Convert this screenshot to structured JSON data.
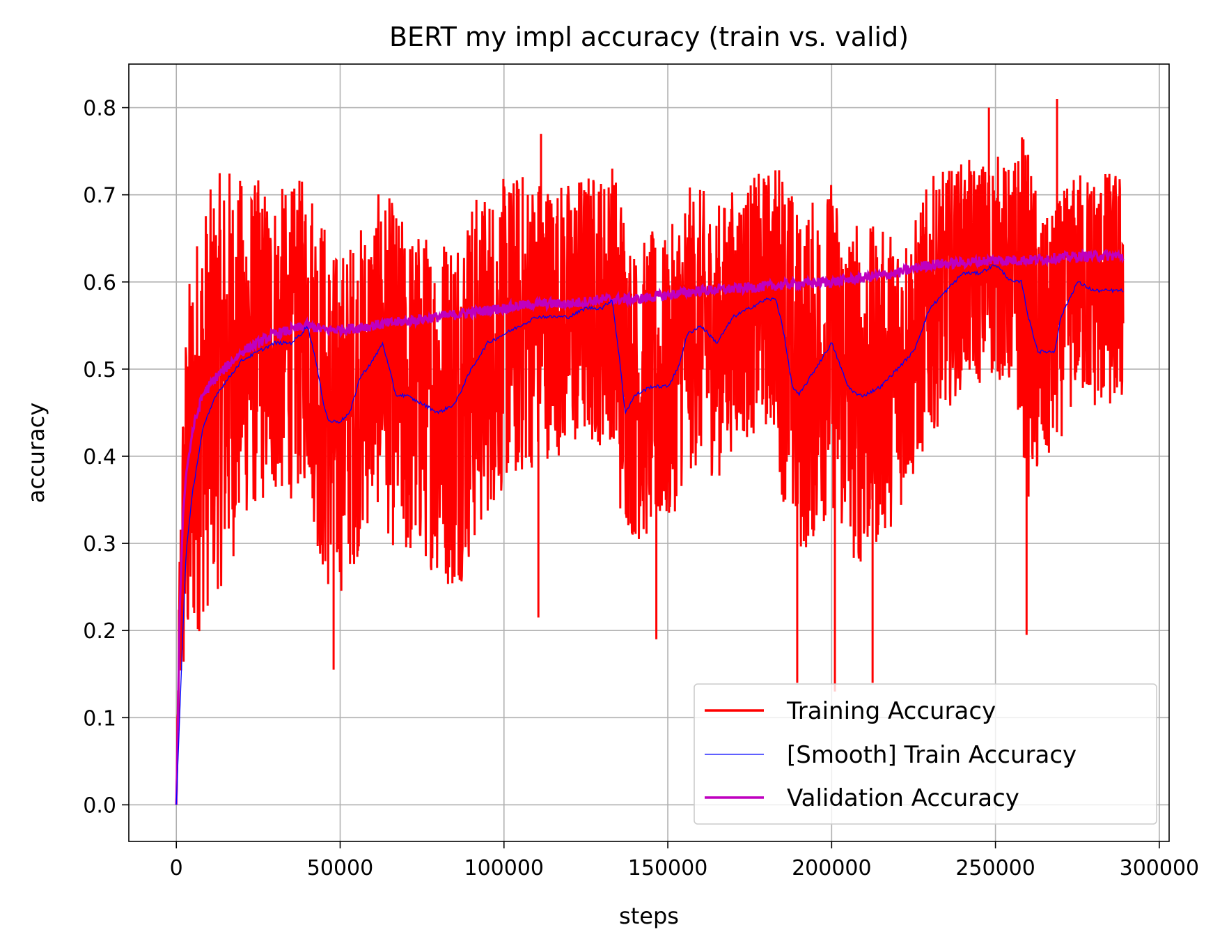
{
  "chart_data": {
    "type": "line",
    "title": "BERT my impl accuracy (train vs. valid)",
    "xlabel": "steps",
    "ylabel": "accuracy",
    "xlim": [
      -14500,
      303000
    ],
    "ylim": [
      -0.042,
      0.85
    ],
    "xticks": [
      0,
      50000,
      100000,
      150000,
      200000,
      250000,
      300000
    ],
    "xtick_labels": [
      "0",
      "50000",
      "100000",
      "150000",
      "200000",
      "250000",
      "300000"
    ],
    "yticks": [
      0.0,
      0.1,
      0.2,
      0.3,
      0.4,
      0.5,
      0.6,
      0.7,
      0.8
    ],
    "ytick_labels": [
      "0.0",
      "0.1",
      "0.2",
      "0.3",
      "0.4",
      "0.5",
      "0.6",
      "0.7",
      "0.8"
    ],
    "grid": true,
    "legend_position": "lower-right",
    "series": [
      {
        "name": "Training Accuracy",
        "color": "#ff0000",
        "style": "noisy",
        "x": [
          0,
          500,
          1000,
          2000,
          3000,
          5000,
          8000,
          12000,
          16000,
          20000,
          25000,
          30000,
          35000,
          38000,
          40000,
          42000,
          45000,
          48000,
          50000,
          55000,
          60000,
          63000,
          65000,
          70000,
          75000,
          80000,
          85000,
          90000,
          95000,
          100000,
          105000,
          110000,
          115000,
          120000,
          125000,
          130000,
          133000,
          135000,
          140000,
          145000,
          150000,
          155000,
          160000,
          165000,
          170000,
          175000,
          180000,
          183000,
          185000,
          190000,
          195000,
          200000,
          205000,
          210000,
          215000,
          220000,
          225000,
          230000,
          235000,
          240000,
          245000,
          250000,
          255000,
          258000,
          260000,
          265000,
          270000,
          275000,
          280000,
          285000,
          289000
        ],
        "values": [
          0.0,
          0.1,
          0.2,
          0.3,
          0.35,
          0.41,
          0.45,
          0.48,
          0.5,
          0.52,
          0.53,
          0.53,
          0.53,
          0.54,
          0.55,
          0.52,
          0.46,
          0.44,
          0.44,
          0.47,
          0.51,
          0.53,
          0.5,
          0.47,
          0.47,
          0.46,
          0.46,
          0.49,
          0.52,
          0.54,
          0.55,
          0.56,
          0.56,
          0.56,
          0.57,
          0.57,
          0.58,
          0.53,
          0.47,
          0.48,
          0.48,
          0.54,
          0.55,
          0.53,
          0.56,
          0.57,
          0.58,
          0.58,
          0.55,
          0.48,
          0.5,
          0.53,
          0.48,
          0.47,
          0.48,
          0.5,
          0.52,
          0.57,
          0.59,
          0.61,
          0.61,
          0.62,
          0.6,
          0.6,
          0.55,
          0.52,
          0.56,
          0.6,
          0.59,
          0.59,
          0.59
        ],
        "spread": [
          0.0,
          0.05,
          0.12,
          0.18,
          0.22,
          0.24,
          0.24,
          0.24,
          0.24,
          0.2,
          0.19,
          0.18,
          0.18,
          0.18,
          0.18,
          0.2,
          0.22,
          0.2,
          0.2,
          0.19,
          0.18,
          0.18,
          0.2,
          0.2,
          0.19,
          0.2,
          0.22,
          0.21,
          0.19,
          0.18,
          0.18,
          0.17,
          0.16,
          0.16,
          0.16,
          0.16,
          0.16,
          0.2,
          0.17,
          0.18,
          0.17,
          0.17,
          0.16,
          0.16,
          0.15,
          0.15,
          0.15,
          0.16,
          0.2,
          0.2,
          0.2,
          0.19,
          0.2,
          0.2,
          0.18,
          0.17,
          0.15,
          0.15,
          0.14,
          0.13,
          0.13,
          0.13,
          0.13,
          0.18,
          0.2,
          0.15,
          0.14,
          0.13,
          0.14,
          0.14,
          0.14
        ],
        "spikes": [
          {
            "x": 48000,
            "y": 0.155
          },
          {
            "x": 110500,
            "y": 0.215
          },
          {
            "x": 146500,
            "y": 0.19
          },
          {
            "x": 189500,
            "y": 0.14
          },
          {
            "x": 201000,
            "y": 0.13
          },
          {
            "x": 212500,
            "y": 0.14
          },
          {
            "x": 259500,
            "y": 0.195
          },
          {
            "x": 268800,
            "y": 0.81
          },
          {
            "x": 248000,
            "y": 0.8
          },
          {
            "x": 111300,
            "y": 0.77
          }
        ]
      },
      {
        "name": "[Smooth] Train Accuracy",
        "color": "#0000ff",
        "style": "thin",
        "x": [
          0,
          1000,
          2000,
          3000,
          5000,
          8000,
          12000,
          16000,
          20000,
          25000,
          30000,
          35000,
          38000,
          40000,
          42000,
          45000,
          46500,
          50000,
          53000,
          56000,
          60000,
          63000,
          65000,
          67000,
          70000,
          75000,
          80000,
          85000,
          90000,
          95000,
          100000,
          105000,
          110000,
          115000,
          120000,
          125000,
          130000,
          133000,
          135000,
          137000,
          140000,
          145000,
          150000,
          153000,
          156000,
          160000,
          165000,
          170000,
          175000,
          180000,
          183000,
          185000,
          188000,
          190000,
          195000,
          200000,
          203000,
          205000,
          208000,
          210000,
          215000,
          220000,
          225000,
          230000,
          235000,
          240000,
          245000,
          250000,
          255000,
          258000,
          260000,
          263000,
          265000,
          268000,
          270000,
          275000,
          280000,
          285000,
          289000
        ],
        "values": [
          0.0,
          0.1,
          0.2,
          0.29,
          0.36,
          0.43,
          0.47,
          0.49,
          0.51,
          0.52,
          0.53,
          0.53,
          0.54,
          0.55,
          0.52,
          0.46,
          0.44,
          0.44,
          0.45,
          0.49,
          0.51,
          0.53,
          0.5,
          0.47,
          0.47,
          0.46,
          0.45,
          0.46,
          0.5,
          0.53,
          0.54,
          0.55,
          0.56,
          0.56,
          0.56,
          0.57,
          0.57,
          0.58,
          0.52,
          0.45,
          0.47,
          0.48,
          0.48,
          0.5,
          0.54,
          0.55,
          0.53,
          0.56,
          0.57,
          0.58,
          0.58,
          0.55,
          0.48,
          0.47,
          0.5,
          0.53,
          0.5,
          0.48,
          0.47,
          0.47,
          0.48,
          0.5,
          0.52,
          0.57,
          0.59,
          0.61,
          0.61,
          0.62,
          0.6,
          0.6,
          0.56,
          0.52,
          0.52,
          0.52,
          0.56,
          0.6,
          0.59,
          0.59,
          0.59
        ]
      },
      {
        "name": "Validation Accuracy",
        "color": "#bf00bf",
        "style": "jitter",
        "x": [
          0,
          500,
          1000,
          2000,
          3000,
          5000,
          8000,
          12000,
          16000,
          20000,
          25000,
          30000,
          35000,
          40000,
          45000,
          50000,
          60000,
          70000,
          80000,
          90000,
          100000,
          110000,
          120000,
          130000,
          140000,
          150000,
          160000,
          170000,
          180000,
          190000,
          200000,
          210000,
          220000,
          230000,
          240000,
          250000,
          260000,
          270000,
          280000,
          289000
        ],
        "values": [
          0.0,
          0.1,
          0.22,
          0.33,
          0.38,
          0.43,
          0.47,
          0.49,
          0.505,
          0.52,
          0.53,
          0.54,
          0.545,
          0.55,
          0.545,
          0.545,
          0.55,
          0.555,
          0.56,
          0.565,
          0.57,
          0.575,
          0.575,
          0.58,
          0.58,
          0.585,
          0.59,
          0.592,
          0.595,
          0.598,
          0.6,
          0.605,
          0.61,
          0.62,
          0.622,
          0.625,
          0.625,
          0.628,
          0.63,
          0.63
        ]
      }
    ]
  }
}
